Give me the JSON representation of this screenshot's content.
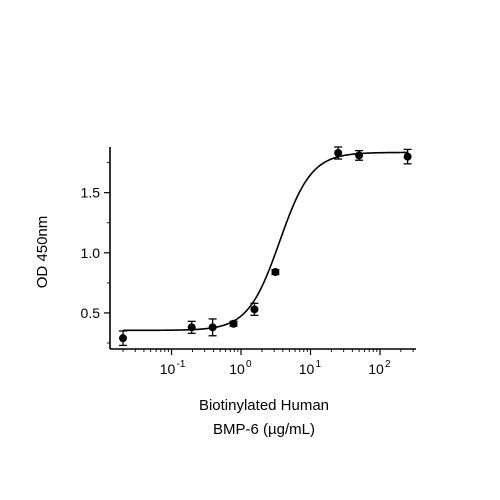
{
  "chart_data": {
    "type": "scatter",
    "xlabel_lines": [
      "Biotinylated Human",
      "BMP-6 (µg/mL)"
    ],
    "ylabel": "OD 450nm",
    "x_scale": "log",
    "xlim": [
      0.013,
      330
    ],
    "ylim": [
      0.2,
      1.88
    ],
    "grid": false,
    "x_ticks": [
      {
        "value": 0.1,
        "base": "10",
        "exp": "-1"
      },
      {
        "value": 1,
        "base": "10",
        "exp": "0"
      },
      {
        "value": 10,
        "base": "10",
        "exp": "1"
      },
      {
        "value": 100,
        "base": "10",
        "exp": "2"
      }
    ],
    "y_ticks": [
      {
        "value": 0.5,
        "label": "0.5"
      },
      {
        "value": 1.0,
        "label": "1.0"
      },
      {
        "value": 1.5,
        "label": "1.5"
      }
    ],
    "points": [
      {
        "x": 0.02,
        "y": 0.29,
        "err": 0.06
      },
      {
        "x": 0.195,
        "y": 0.38,
        "err": 0.05
      },
      {
        "x": 0.39,
        "y": 0.38,
        "err": 0.07
      },
      {
        "x": 0.78,
        "y": 0.41,
        "err": 0.02
      },
      {
        "x": 1.56,
        "y": 0.53,
        "err": 0.05
      },
      {
        "x": 3.125,
        "y": 0.84,
        "err": 0.02
      },
      {
        "x": 25,
        "y": 1.83,
        "err": 0.05
      },
      {
        "x": 50,
        "y": 1.81,
        "err": 0.04
      },
      {
        "x": 250,
        "y": 1.8,
        "err": 0.06
      }
    ],
    "fit": {
      "bottom": 0.355,
      "top": 1.835,
      "ec50": 3.6,
      "hill": 1.9
    }
  }
}
